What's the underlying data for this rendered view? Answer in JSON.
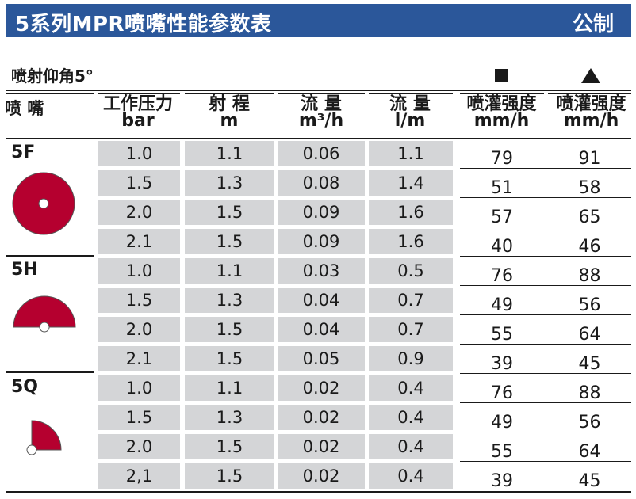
{
  "title": "5系列MPR喷嘴性能参数表",
  "unit_system": "公制",
  "angle_label": "喷射仰角5°",
  "colors": {
    "banner": "#2b579a",
    "nozzle": "#b5002f",
    "cell": "#d4d5d7"
  },
  "headers": {
    "nozzle": "喷 嘴",
    "pressure": {
      "l1": "工作压力",
      "l2": "bar"
    },
    "radius": {
      "l1": "射 程",
      "l2": "m"
    },
    "flow_m3": {
      "l1": "流 量",
      "l2": "m³/h"
    },
    "flow_lm": {
      "l1": "流 量",
      "l2": "l/m"
    },
    "precip_sq": {
      "l1": "喷灌强度",
      "l2": "mm/h"
    },
    "precip_tri": {
      "l1": "喷灌强度",
      "l2": "mm/h"
    }
  },
  "groups": [
    {
      "name": "5F",
      "icon": "full-circle-nozzle-icon",
      "rows": [
        {
          "p": "1.0",
          "r": "1.1",
          "q": "0.06",
          "l": "1.1",
          "sq": "79",
          "tri": "91"
        },
        {
          "p": "1.5",
          "r": "1.3",
          "q": "0.08",
          "l": "1.4",
          "sq": "51",
          "tri": "58"
        },
        {
          "p": "2.0",
          "r": "1.5",
          "q": "0.09",
          "l": "1.6",
          "sq": "57",
          "tri": "65"
        },
        {
          "p": "2.1",
          "r": "1.5",
          "q": "0.09",
          "l": "1.6",
          "sq": "40",
          "tri": "46"
        }
      ]
    },
    {
      "name": "5H",
      "icon": "half-circle-nozzle-icon",
      "rows": [
        {
          "p": "1.0",
          "r": "1.1",
          "q": "0.03",
          "l": "0.5",
          "sq": "76",
          "tri": "88"
        },
        {
          "p": "1.5",
          "r": "1.3",
          "q": "0.04",
          "l": "0.7",
          "sq": "49",
          "tri": "56"
        },
        {
          "p": "2.0",
          "r": "1.5",
          "q": "0.04",
          "l": "0.7",
          "sq": "55",
          "tri": "64"
        },
        {
          "p": "2.1",
          "r": "1.5",
          "q": "0.05",
          "l": "0.9",
          "sq": "39",
          "tri": "45"
        }
      ]
    },
    {
      "name": "5Q",
      "icon": "quarter-circle-nozzle-icon",
      "rows": [
        {
          "p": "1.0",
          "r": "1.1",
          "q": "0.02",
          "l": "0.4",
          "sq": "76",
          "tri": "88"
        },
        {
          "p": "1.5",
          "r": "1.3",
          "q": "0.02",
          "l": "0.4",
          "sq": "49",
          "tri": "56"
        },
        {
          "p": "2.0",
          "r": "1.5",
          "q": "0.02",
          "l": "0.4",
          "sq": "55",
          "tri": "64"
        },
        {
          "p": "2,1",
          "r": "1.5",
          "q": "0.02",
          "l": "0.4",
          "sq": "39",
          "tri": "45"
        }
      ]
    }
  ]
}
